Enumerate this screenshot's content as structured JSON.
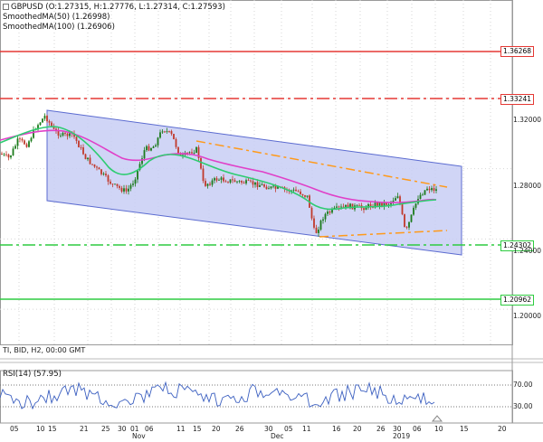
{
  "legend": {
    "symbol_line": "GBPUSD (O:1.27315, H:1.27776, L:1.27314, C:1.27593)",
    "ma50_line": "SmoothedMA(50) (1.26998)",
    "ma100_line": "SmoothedMA(100) (1.26906)"
  },
  "info": {
    "text": "TI, BID, H2, 00:00 GMT"
  },
  "rsi": {
    "label": "RSI(14) (57.95)",
    "level_upper": "70.00",
    "level_lower": "30.00"
  },
  "price_levels": [
    {
      "value": "1.36268",
      "color": "#e53935",
      "style": "solid"
    },
    {
      "value": "1.33241",
      "color": "#e53935",
      "style": "dashdot"
    },
    {
      "value": "1.24302",
      "color": "#2ecc40",
      "style": "dashdot"
    },
    {
      "value": "1.20962",
      "color": "#2ecc40",
      "style": "solid"
    }
  ],
  "price_axis": [
    "1.32000",
    "1.28000",
    "1.24000",
    "1.20000"
  ],
  "date_axis": [
    "05",
    "10",
    "15",
    "21",
    "25",
    "30",
    "01",
    "06",
    "11",
    "15",
    "20",
    "26",
    "30",
    "05",
    "11",
    "16",
    "20",
    "26",
    "30",
    "06",
    "10",
    "15",
    "20"
  ],
  "month_labels": [
    "Nov",
    "Dec",
    "2019"
  ],
  "colors": {
    "ma50": "#2ecc71",
    "ma100": "#e040c8",
    "candle_up": "#1b7a1b",
    "candle_down": "#c0392b",
    "channel_fill": "#c8cef5",
    "channel_line": "#5b6bd0",
    "orange_line": "#ff9a1a",
    "rsi_line": "#3b5fc0"
  }
}
